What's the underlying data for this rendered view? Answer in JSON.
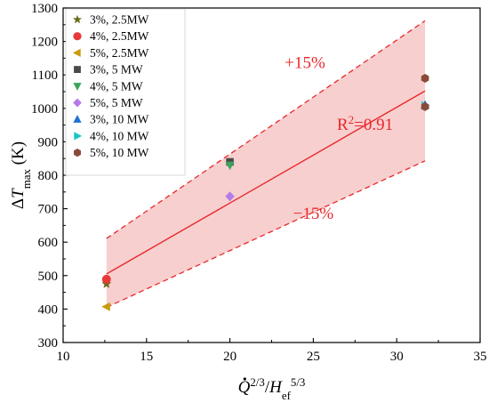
{
  "chart_data": {
    "type": "scatter",
    "title": "",
    "xlabel": {
      "parts": [
        {
          "text": "Q",
          "italic": true,
          "dot": true
        },
        {
          "text": "2/3",
          "sup": true
        },
        {
          "text": "/"
        },
        {
          "text": "H",
          "italic": true
        },
        {
          "text": "ef",
          "sub": true
        },
        {
          "text": "5/3",
          "sup": true
        }
      ]
    },
    "ylabel": {
      "parts": [
        {
          "text": "Δ"
        },
        {
          "text": "T",
          "italic": true
        },
        {
          "text": "max",
          "sub": true
        },
        {
          "text": " (K)"
        }
      ]
    },
    "xlim": [
      10,
      35
    ],
    "ylim": [
      300,
      1300
    ],
    "xticks": [
      10,
      15,
      20,
      25,
      30,
      35
    ],
    "yticks": [
      300,
      400,
      500,
      600,
      700,
      800,
      900,
      1000,
      1100,
      1200,
      1300
    ],
    "grid": false,
    "legend_position": "top-left",
    "series": [
      {
        "name": "3%, 2.5MW",
        "marker": "star",
        "color": "#6b6b1f",
        "points": [
          [
            12.6,
            475
          ]
        ]
      },
      {
        "name": "4%, 2.5MW",
        "marker": "circle",
        "color": "#e8393a",
        "points": [
          [
            12.6,
            489
          ]
        ]
      },
      {
        "name": "5%, 2.5MW",
        "marker": "triangle-left",
        "color": "#c99a0c",
        "points": [
          [
            12.6,
            407
          ]
        ]
      },
      {
        "name": "3%,  5  MW",
        "marker": "square",
        "color": "#4a4a4a",
        "points": [
          [
            20.0,
            840
          ]
        ]
      },
      {
        "name": "4%,  5  MW",
        "marker": "triangle-down",
        "color": "#3aa55a",
        "points": [
          [
            20.0,
            830
          ]
        ]
      },
      {
        "name": "5%,  5  MW",
        "marker": "diamond",
        "color": "#b57ce8",
        "points": [
          [
            20.0,
            737
          ]
        ]
      },
      {
        "name": "3%, 10 MW",
        "marker": "triangle-up",
        "color": "#1f6fd6",
        "points": [
          [
            31.7,
            1010
          ]
        ]
      },
      {
        "name": "4%, 10 MW",
        "marker": "triangle-right",
        "color": "#1bc3c8",
        "points": [
          [
            31.7,
            1008
          ]
        ]
      },
      {
        "name": "5%, 10 MW",
        "marker": "hexagon",
        "color": "#8a4a3a",
        "points": [
          [
            31.7,
            1090
          ],
          [
            31.7,
            1005
          ]
        ]
      }
    ],
    "fit_line": {
      "x": [
        12.6,
        31.7
      ],
      "y": [
        505,
        1052
      ],
      "color": "#e8282b"
    },
    "band_upper": {
      "x": [
        12.6,
        31.7
      ],
      "y": [
        611,
        1262
      ]
    },
    "band_lower": {
      "x": [
        12.6,
        31.7
      ],
      "y": [
        405,
        843
      ]
    },
    "band_fill_color": "#f8cfcf",
    "band_line_color": "#e8282b",
    "annotations": [
      {
        "name": "plus-15-label",
        "text": "+15%",
        "x": 24.5,
        "y": 1120
      },
      {
        "name": "minus-15-label",
        "text": "−15%",
        "x": 25.0,
        "y": 670
      },
      {
        "name": "r2-label",
        "text": "R",
        "sup": "2",
        "rest": "=0.91",
        "x": 28.1,
        "y": 935
      }
    ]
  }
}
